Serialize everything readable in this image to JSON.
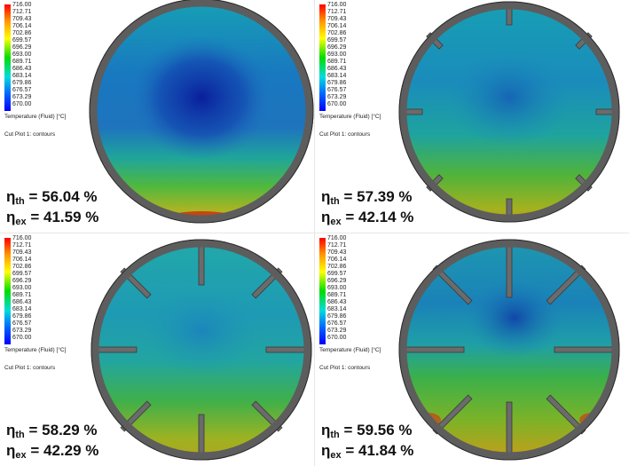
{
  "colorbar": {
    "ticks": [
      "716.00",
      "712.71",
      "709.43",
      "706.14",
      "702.86",
      "699.57",
      "696.29",
      "693.00",
      "689.71",
      "686.43",
      "683.14",
      "679.86",
      "676.57",
      "673.29",
      "670.00"
    ],
    "title": "Temperature (Fluid) [°C]",
    "colors": [
      "#ff0000",
      "#ff9900",
      "#ffff00",
      "#00dd00",
      "#00dddd",
      "#0066ff",
      "#0000ff"
    ]
  },
  "cut_plot_label": "Cut Plot 1: contours",
  "efficiency": {
    "th_symbol": "η",
    "th_sub": "th",
    "ex_symbol": "η",
    "ex_sub": "ex"
  },
  "panels": [
    {
      "eta_th": "= 56.04 %",
      "eta_ex": "= 41.59 %",
      "fin_count": 0
    },
    {
      "eta_th": "= 57.39 %",
      "eta_ex": "= 42.14 %",
      "fin_count": 8
    },
    {
      "eta_th": "= 58.29 %",
      "eta_ex": "= 42.29 %",
      "fin_count": 8
    },
    {
      "eta_th": "= 59.56 %",
      "eta_ex": "= 41.84 %",
      "fin_count": 8
    }
  ]
}
